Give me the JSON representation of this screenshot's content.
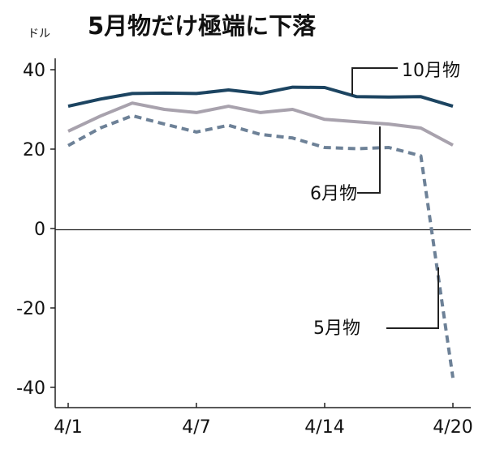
{
  "chart_data": {
    "type": "line",
    "title": "5月物だけ極端に下落",
    "unit": "ドル",
    "ylim": [
      -40,
      40
    ],
    "yticks": [
      40,
      20,
      0,
      -20,
      -40
    ],
    "ytick_labels": [
      "40",
      "20",
      "0",
      "-20",
      "-40"
    ],
    "x": [
      "4/1",
      "4/2",
      "4/3",
      "4/6",
      "4/7",
      "4/8",
      "4/9",
      "4/13",
      "4/14",
      "4/15",
      "4/16",
      "4/17",
      "4/20"
    ],
    "xtick_labels": [
      "4/1",
      "4/7",
      "4/14",
      "4/20"
    ],
    "grid": false,
    "legend": "inline labels",
    "series": [
      {
        "name": "10月物",
        "values": [
          30.8,
          32.6,
          34.0,
          34.1,
          34.0,
          34.9,
          34.0,
          35.6,
          35.5,
          33.2,
          33.1,
          33.2,
          30.8
        ],
        "color": "#1c4461",
        "style": "solid"
      },
      {
        "name": "6月物",
        "values": [
          24.5,
          28.3,
          31.6,
          30.0,
          29.2,
          30.8,
          29.2,
          30.0,
          27.5,
          26.9,
          26.3,
          25.3,
          21.0
        ],
        "color": "#a8a2ad",
        "style": "solid"
      },
      {
        "name": "5月物",
        "values": [
          20.9,
          25.3,
          28.4,
          26.3,
          24.3,
          26.0,
          23.7,
          22.8,
          20.4,
          20.1,
          20.4,
          18.3,
          -37.6
        ],
        "color": "#6d8197",
        "style": "dashed"
      }
    ]
  }
}
